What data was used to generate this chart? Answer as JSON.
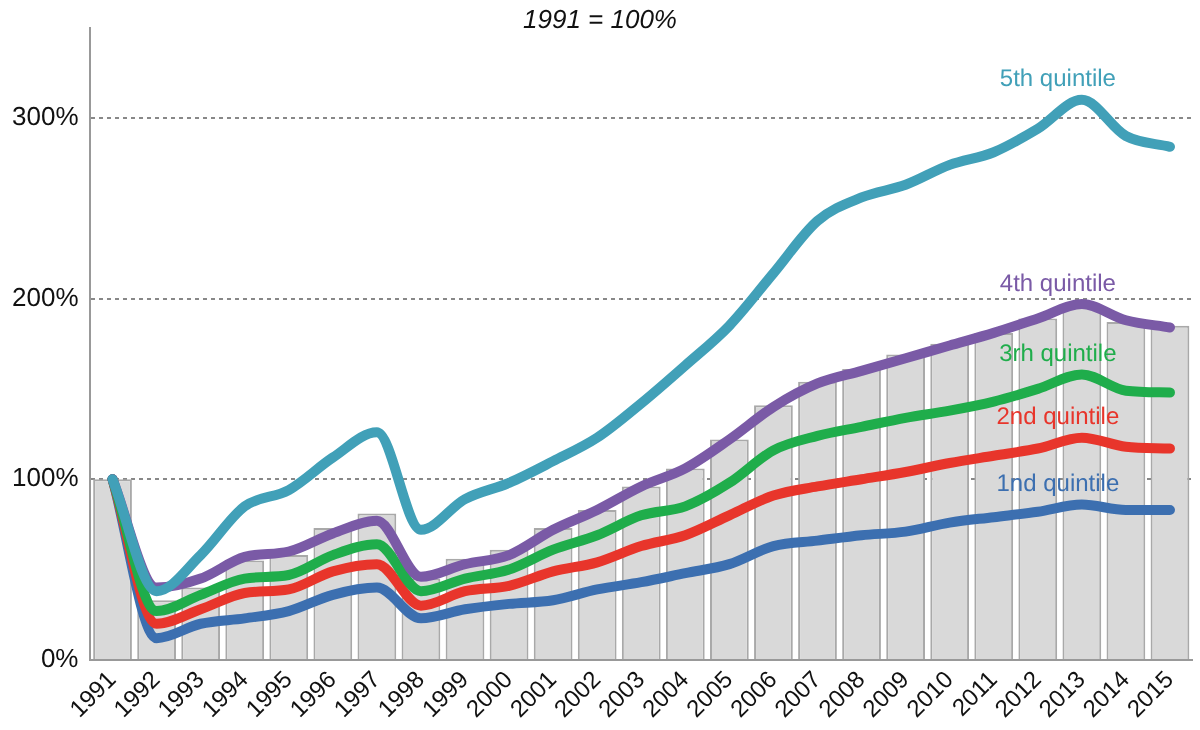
{
  "chart_data": {
    "type": "bar",
    "title": "1991 = 100%",
    "categories": [
      "1991",
      "1992",
      "1993",
      "1994",
      "1995",
      "1996",
      "1997",
      "1998",
      "1999",
      "2000",
      "2001",
      "2002",
      "2003",
      "2004",
      "2005",
      "2006",
      "2007",
      "2008",
      "2009",
      "2010",
      "2011",
      "2012",
      "2013",
      "2014",
      "2015"
    ],
    "series": [
      {
        "color": "#d9d9d9",
        "values": [
          100,
          33,
          40,
          55,
          58,
          73,
          81,
          45,
          56,
          61,
          73,
          83,
          96,
          106,
          122,
          141,
          154,
          161,
          169,
          175,
          181,
          189,
          197,
          187,
          185
        ]
      },
      {
        "type": "line",
        "name": "5th quintile",
        "color": "#41a0b8",
        "values": [
          100,
          38,
          58,
          85,
          94,
          112,
          126,
          72,
          89,
          98,
          110,
          123,
          142,
          163,
          185,
          214,
          243,
          256,
          263,
          274,
          281,
          294,
          310,
          290,
          284
        ]
      },
      {
        "type": "line",
        "name": "4th quintile",
        "color": "#7a5aa6",
        "values": [
          100,
          40,
          45,
          57,
          60,
          70,
          77,
          46,
          53,
          58,
          72,
          83,
          96,
          106,
          122,
          140,
          153,
          160,
          167,
          174,
          181,
          189,
          197,
          188,
          184
        ]
      },
      {
        "type": "line",
        "name": "3rh quintile",
        "color": "#1fad4b",
        "values": [
          100,
          27,
          36,
          45,
          47,
          58,
          64,
          38,
          45,
          50,
          61,
          69,
          80,
          85,
          98,
          116,
          124,
          129,
          134,
          138,
          143,
          150,
          158,
          149,
          148
        ]
      },
      {
        "type": "line",
        "name": "2nd quintile",
        "color": "#e8352b",
        "values": [
          100,
          20,
          28,
          37,
          39,
          49,
          53,
          30,
          38,
          41,
          49,
          54,
          63,
          69,
          80,
          91,
          96,
          100,
          104,
          109,
          113,
          117,
          123,
          118,
          117
        ]
      },
      {
        "type": "line",
        "name": "1nd quintile",
        "color": "#3c6fb0",
        "values": [
          100,
          12,
          20,
          23,
          27,
          36,
          40,
          23,
          28,
          31,
          33,
          39,
          43,
          48,
          53,
          63,
          66,
          69,
          71,
          76,
          79,
          82,
          86,
          83,
          83
        ]
      }
    ],
    "ylim": [
      0,
      350
    ],
    "yticks": [
      {
        "value": 0,
        "label": "0%"
      },
      {
        "value": 100,
        "label": "100%"
      },
      {
        "value": 200,
        "label": "200%"
      },
      {
        "value": 300,
        "label": "300%"
      }
    ],
    "grid": "y",
    "legend": false,
    "marker": "none",
    "line_style": "solid"
  }
}
